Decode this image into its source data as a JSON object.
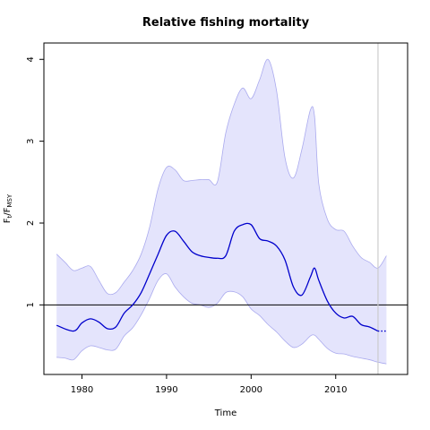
{
  "chart_data": {
    "type": "line",
    "title": "Relative fishing mortality",
    "xlabel": "Time",
    "ylabel": {
      "main": "F",
      "sub_t": "t",
      "slash": "/F",
      "sub_msy": "MSY"
    },
    "xlim": [
      1975.5,
      2018.5
    ],
    "ylim": [
      0.15,
      4.2
    ],
    "x_ticks": [
      1980,
      1990,
      2000,
      2010
    ],
    "y_ticks": [
      1,
      2,
      3,
      4
    ],
    "reference_line": {
      "y": 1
    },
    "vertical_marker": {
      "x": 2015
    },
    "colors": {
      "estimate": "#0000cc",
      "band_fill": "#e4e4fc",
      "band_edge": "#aaaaee",
      "reference": "#000000",
      "marker": "#cccccc"
    },
    "series": [
      {
        "x": [
          1977,
          1979,
          1980,
          1981,
          1982,
          1983,
          1984,
          1985,
          1986,
          1987,
          1988,
          1989,
          1990,
          1991,
          1992,
          1993,
          1994,
          1995,
          1996,
          1997,
          1998,
          1999,
          2000,
          2001,
          2002,
          2003,
          2004,
          2005,
          2006,
          2007,
          2007.5,
          2008,
          2009,
          2010,
          2011,
          2012,
          2013,
          2014,
          2015
        ],
        "y": [
          0.75,
          0.68,
          0.78,
          0.83,
          0.79,
          0.71,
          0.73,
          0.9,
          1.0,
          1.15,
          1.38,
          1.62,
          1.85,
          1.9,
          1.78,
          1.65,
          1.6,
          1.58,
          1.57,
          1.6,
          1.9,
          1.98,
          1.98,
          1.81,
          1.78,
          1.72,
          1.55,
          1.22,
          1.12,
          1.34,
          1.45,
          1.3,
          1.05,
          0.9,
          0.84,
          0.86,
          0.76,
          0.73,
          0.68
        ]
      },
      {
        "x": [
          2015,
          2016
        ],
        "y": [
          0.68,
          0.68
        ],
        "style": "dotted"
      }
    ],
    "band": {
      "x": [
        1977,
        1978,
        1979,
        1980,
        1981,
        1982,
        1983,
        1984,
        1985,
        1986,
        1987,
        1988,
        1989,
        1990,
        1991,
        1992,
        1993,
        1994,
        1995,
        1996,
        1997,
        1998,
        1999,
        2000,
        2001,
        2002,
        2003,
        2004,
        2005,
        2006,
        2007,
        2007.5,
        2008,
        2009,
        2010,
        2011,
        2012,
        2013,
        2014,
        2015,
        2016
      ],
      "upper": [
        1.62,
        1.52,
        1.42,
        1.45,
        1.47,
        1.3,
        1.14,
        1.15,
        1.28,
        1.42,
        1.62,
        1.95,
        2.42,
        2.68,
        2.65,
        2.52,
        2.52,
        2.53,
        2.53,
        2.5,
        3.1,
        3.45,
        3.65,
        3.52,
        3.75,
        4.0,
        3.62,
        2.8,
        2.55,
        2.9,
        3.38,
        3.3,
        2.48,
        2.05,
        1.92,
        1.9,
        1.72,
        1.58,
        1.52,
        1.45,
        1.6
      ],
      "lower": [
        0.36,
        0.35,
        0.33,
        0.44,
        0.5,
        0.48,
        0.45,
        0.46,
        0.62,
        0.72,
        0.88,
        1.08,
        1.3,
        1.38,
        1.22,
        1.1,
        1.02,
        1.0,
        0.97,
        1.02,
        1.15,
        1.16,
        1.1,
        0.95,
        0.87,
        0.76,
        0.67,
        0.56,
        0.48,
        0.52,
        0.62,
        0.63,
        0.58,
        0.47,
        0.41,
        0.4,
        0.37,
        0.35,
        0.33,
        0.3,
        0.28
      ]
    }
  }
}
